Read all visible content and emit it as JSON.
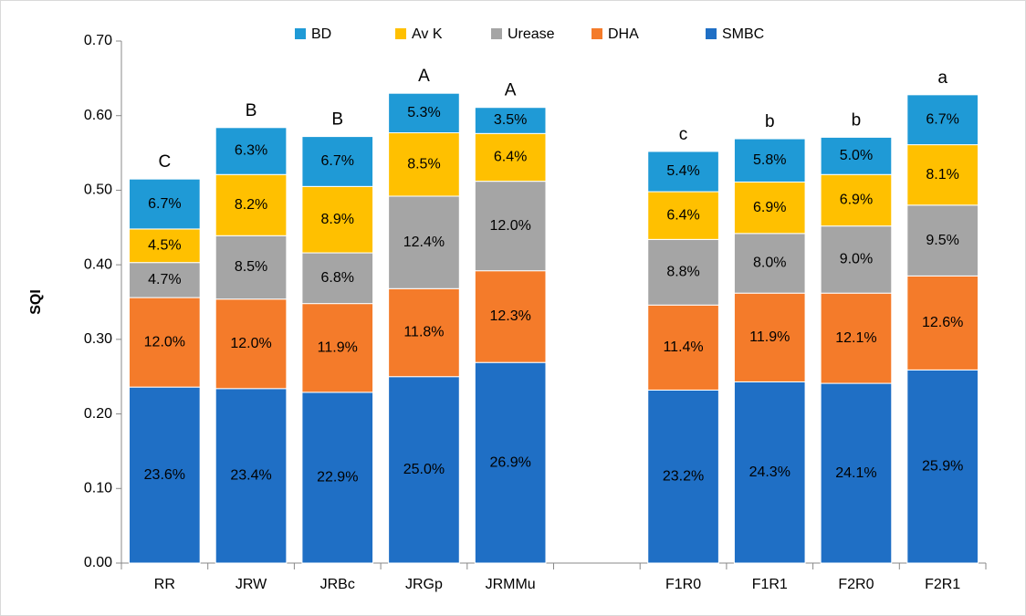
{
  "chart_data": {
    "type": "stacked_bar",
    "y_label": "SQI",
    "categories": [
      "RR",
      "JRW",
      "JRBc",
      "JRGp",
      "JRMMu",
      null,
      "F1R0",
      "F1R1",
      "F2R0",
      "F2R1"
    ],
    "series": [
      {
        "name": "SMBC",
        "color": "#1f6fc5",
        "values": [
          0.236,
          0.234,
          0.229,
          0.25,
          0.269,
          null,
          0.232,
          0.243,
          0.241,
          0.259
        ],
        "value_labels": [
          "23.6%",
          "23.4%",
          "22.9%",
          "25.0%",
          "26.9%",
          null,
          "23.2%",
          "24.3%",
          "24.1%",
          "25.9%"
        ]
      },
      {
        "name": "DHA",
        "color": "#f47b2a",
        "values": [
          0.12,
          0.12,
          0.119,
          0.118,
          0.123,
          null,
          0.114,
          0.119,
          0.121,
          0.126
        ],
        "value_labels": [
          "12.0%",
          "12.0%",
          "11.9%",
          "11.8%",
          "12.3%",
          null,
          "11.4%",
          "11.9%",
          "12.1%",
          "12.6%"
        ]
      },
      {
        "name": "Urease",
        "color": "#a5a5a5",
        "values": [
          0.047,
          0.085,
          0.068,
          0.124,
          0.12,
          null,
          0.088,
          0.08,
          0.09,
          0.095
        ],
        "value_labels": [
          "4.7%",
          "8.5%",
          "6.8%",
          "12.4%",
          "12.0%",
          null,
          "8.8%",
          "8.0%",
          "9.0%",
          "9.5%"
        ]
      },
      {
        "name": "Av K",
        "color": "#ffc000",
        "values": [
          0.045,
          0.082,
          0.089,
          0.085,
          0.064,
          null,
          0.064,
          0.069,
          0.069,
          0.081
        ],
        "value_labels": [
          "4.5%",
          "8.2%",
          "8.9%",
          "8.5%",
          "6.4%",
          null,
          "6.4%",
          "6.9%",
          "6.9%",
          "8.1%"
        ]
      },
      {
        "name": "BD",
        "color": "#1f9ad6",
        "values": [
          0.067,
          0.063,
          0.067,
          0.053,
          0.035,
          null,
          0.054,
          0.058,
          0.05,
          0.067
        ],
        "value_labels": [
          "6.7%",
          "6.3%",
          "6.7%",
          "5.3%",
          "3.5%",
          null,
          "5.4%",
          "5.8%",
          "5.0%",
          "6.7%"
        ]
      }
    ],
    "annotations": [
      "C",
      "B",
      "B",
      "A",
      "A",
      null,
      "c",
      "b",
      "b",
      "a"
    ],
    "ylim": [
      0,
      0.7
    ],
    "yticks": [
      {
        "value": 0,
        "label": "0.00"
      },
      {
        "value": 0.1,
        "label": "0.10"
      },
      {
        "value": 0.2,
        "label": "0.20"
      },
      {
        "value": 0.3,
        "label": "0.30"
      },
      {
        "value": 0.4,
        "label": "0.40"
      },
      {
        "value": 0.5,
        "label": "0.50"
      },
      {
        "value": 0.6,
        "label": "0.60"
      },
      {
        "value": 0.7,
        "label": "0.70"
      }
    ],
    "grid": false
  }
}
